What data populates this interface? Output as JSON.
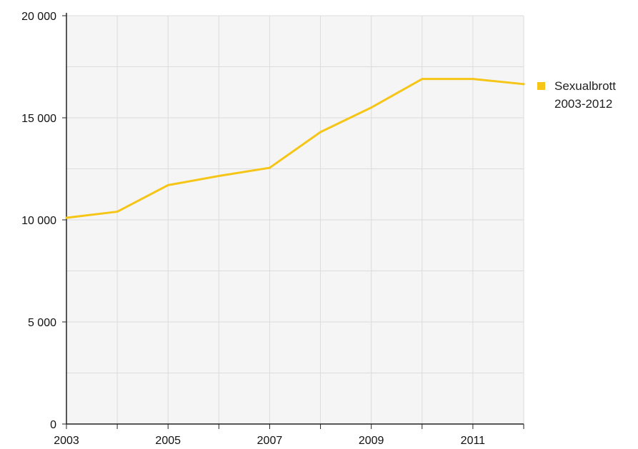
{
  "chart_data": {
    "type": "line",
    "x": [
      2003,
      2004,
      2005,
      2006,
      2007,
      2008,
      2009,
      2010,
      2011,
      2012
    ],
    "series": [
      {
        "name": "Sexualbrott\n2003-2012",
        "values": [
          10100,
          10400,
          11700,
          12150,
          12550,
          14300,
          15500,
          16900,
          16900,
          16650
        ]
      }
    ],
    "xlim": [
      2003,
      2012
    ],
    "ylim": [
      0,
      20000
    ],
    "x_ticks": [
      2003,
      2005,
      2007,
      2009,
      2011
    ],
    "x_tick_labels": [
      "2003",
      "2005",
      "2007",
      "2009",
      "2011"
    ],
    "y_ticks": [
      0,
      5000,
      10000,
      15000,
      20000
    ],
    "y_tick_labels": [
      "0",
      "5 000",
      "10 000",
      "15 000",
      "20 000"
    ],
    "grid": true,
    "legend_position": "right",
    "colors": {
      "series": "#f5c518",
      "plot_background": "#f5f5f5",
      "grid": "#dcdcdc",
      "axis": "#222222"
    }
  }
}
